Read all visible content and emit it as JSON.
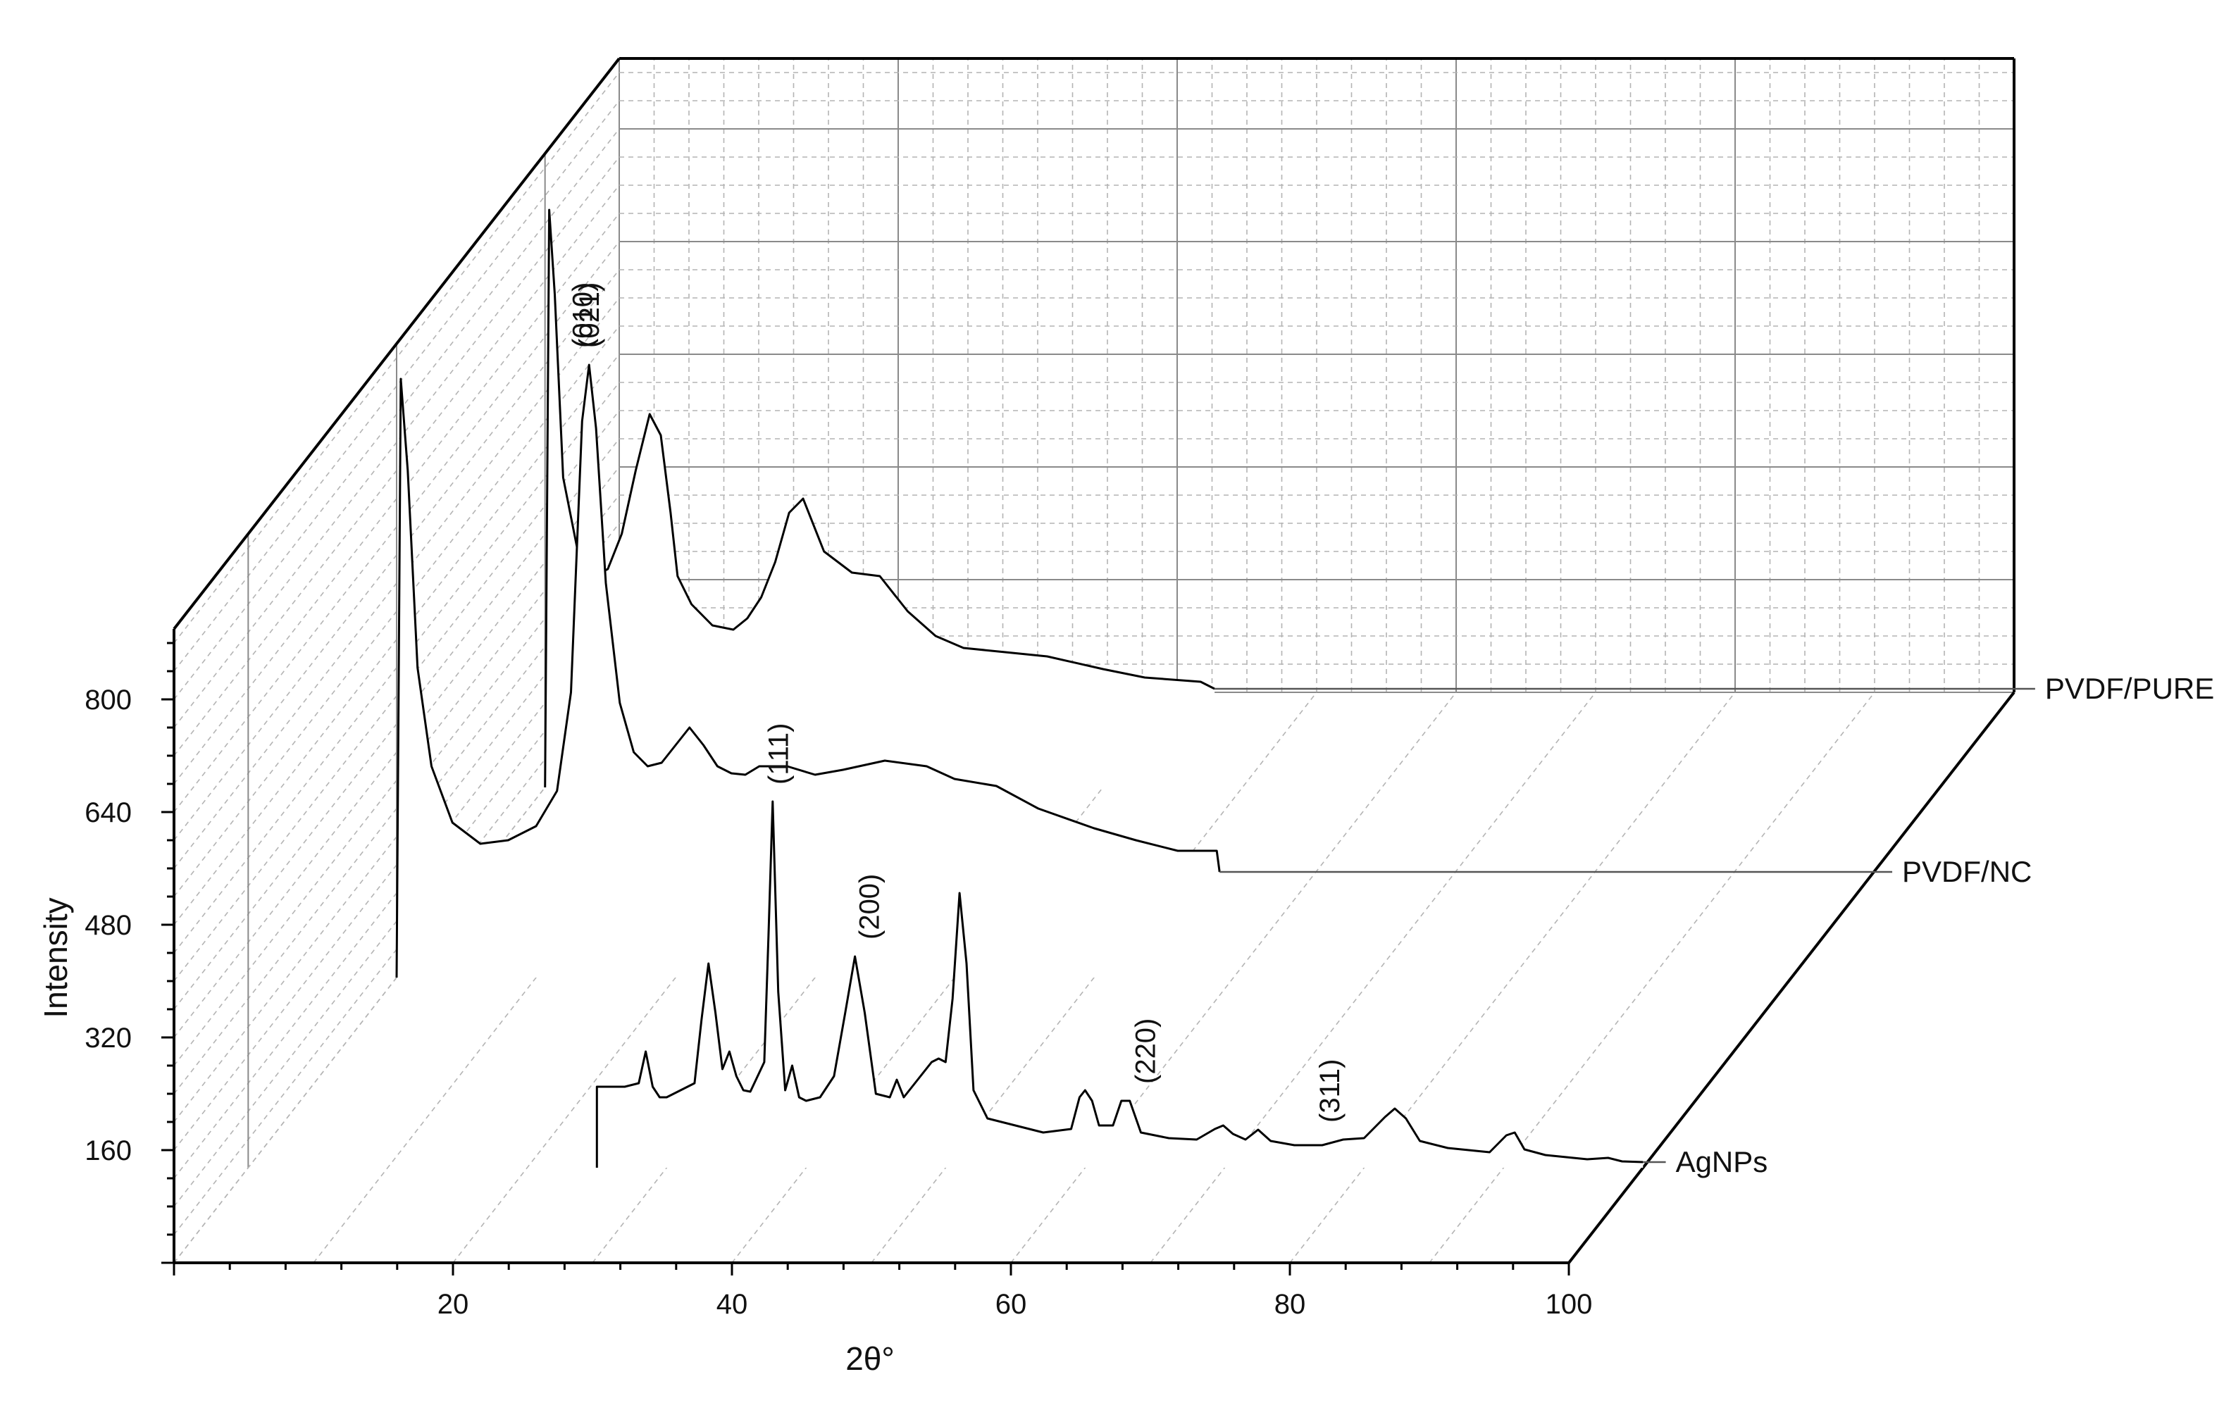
{
  "chart_data": {
    "type": "line",
    "style": "3d-waterfall",
    "title": "",
    "xlabel": "2θ°",
    "ylabel": "Intensity",
    "xlim": [
      0,
      100
    ],
    "ylim": [
      0,
      900
    ],
    "x_ticks": [
      "20",
      "40",
      "60",
      "80",
      "100"
    ],
    "y_ticks": [
      "160",
      "320",
      "480",
      "640",
      "800"
    ],
    "grid": true,
    "series": [
      {
        "name": "AgNPs",
        "x": [
          25,
          25,
          27,
          28,
          28.5,
          29,
          29.5,
          30,
          32,
          32.5,
          33,
          33.5,
          34,
          34.5,
          35,
          35.5,
          36,
          37,
          37.3,
          37.6,
          38,
          38.5,
          39,
          39.5,
          40,
          41,
          42,
          42.8,
          43.5,
          44.2,
          45,
          46,
          46.5,
          47,
          48,
          49,
          49.5,
          50,
          50.5,
          51,
          51.5,
          52,
          53,
          55,
          57,
          59,
          59.6,
          60,
          60.5,
          61,
          62,
          62.6,
          63.2,
          64,
          66,
          68,
          69.3,
          69.9,
          70.6,
          71.5,
          72.4,
          73.3,
          75,
          77,
          78.5,
          80,
          81.5,
          82.2,
          83,
          84,
          86,
          89,
          90.2,
          90.8,
          91.5,
          93,
          96,
          97.5,
          98.5,
          100
        ],
        "y": [
          0,
          115,
          115,
          120,
          165,
          115,
          100,
          100,
          120,
          210,
          290,
          220,
          140,
          165,
          130,
          110,
          108,
          150,
          330,
          520,
          250,
          110,
          145,
          100,
          95,
          100,
          130,
          220,
          300,
          220,
          105,
          100,
          125,
          100,
          125,
          150,
          155,
          150,
          240,
          390,
          290,
          110,
          70,
          60,
          50,
          55,
          100,
          110,
          95,
          60,
          60,
          95,
          95,
          50,
          42,
          40,
          55,
          60,
          48,
          40,
          54,
          38,
          32,
          32,
          40,
          42,
          72,
          84,
          70,
          38,
          28,
          22,
          46,
          50,
          26,
          18,
          12,
          14,
          9,
          8
        ]
      },
      {
        "name": "PVDF/NC",
        "x": [
          0,
          0.3,
          0.8,
          1.5,
          2.5,
          4,
          6,
          8,
          10,
          11.5,
          12.5,
          13.3,
          13.8,
          14.3,
          15,
          16,
          17,
          18,
          19,
          20,
          21,
          22,
          23,
          24,
          25,
          26,
          28,
          30,
          32,
          35,
          38,
          40,
          43,
          46,
          50,
          53,
          56,
          58.8,
          59
        ],
        "y": [
          0,
          850,
          720,
          440,
          300,
          220,
          190,
          195,
          215,
          265,
          405,
          790,
          870,
          780,
          560,
          390,
          320,
          300,
          305,
          330,
          355,
          330,
          300,
          290,
          288,
          300,
          300,
          288,
          295,
          308,
          300,
          282,
          272,
          240,
          212,
          195,
          180,
          180,
          150
        ]
      },
      {
        "name": "PVDF/PURE",
        "x": [
          0,
          0.3,
          0.7,
          1.3,
          2.5,
          3.5,
          4.5,
          5.5,
          6.5,
          7.5,
          8.3,
          9,
          9.5,
          10.5,
          12,
          13.5,
          14.5,
          15.5,
          16.5,
          17.5,
          18.5,
          20,
          22,
          24,
          26,
          28,
          30,
          33,
          36,
          40,
          43,
          47,
          48
        ],
        "y": [
          0,
          820,
          700,
          440,
          320,
          300,
          310,
          360,
          450,
          530,
          500,
          390,
          300,
          260,
          230,
          224,
          240,
          270,
          320,
          390,
          410,
          335,
          305,
          300,
          250,
          215,
          198,
          192,
          186,
          168,
          156,
          150,
          140
        ]
      }
    ],
    "annotations": [
      {
        "text": "(010)",
        "series": "PVDF/NC",
        "x": 13.3
      },
      {
        "text": "(021)",
        "series": "PVDF/NC",
        "x": 13.8
      },
      {
        "text": "(111)",
        "series": "AgNPs",
        "x": 38
      },
      {
        "text": "(200)",
        "series": "AgNPs",
        "x": 44.5
      },
      {
        "text": "(220)",
        "series": "AgNPs",
        "x": 64.3
      },
      {
        "text": "(311)",
        "series": "AgNPs",
        "x": 77.5
      }
    ]
  }
}
